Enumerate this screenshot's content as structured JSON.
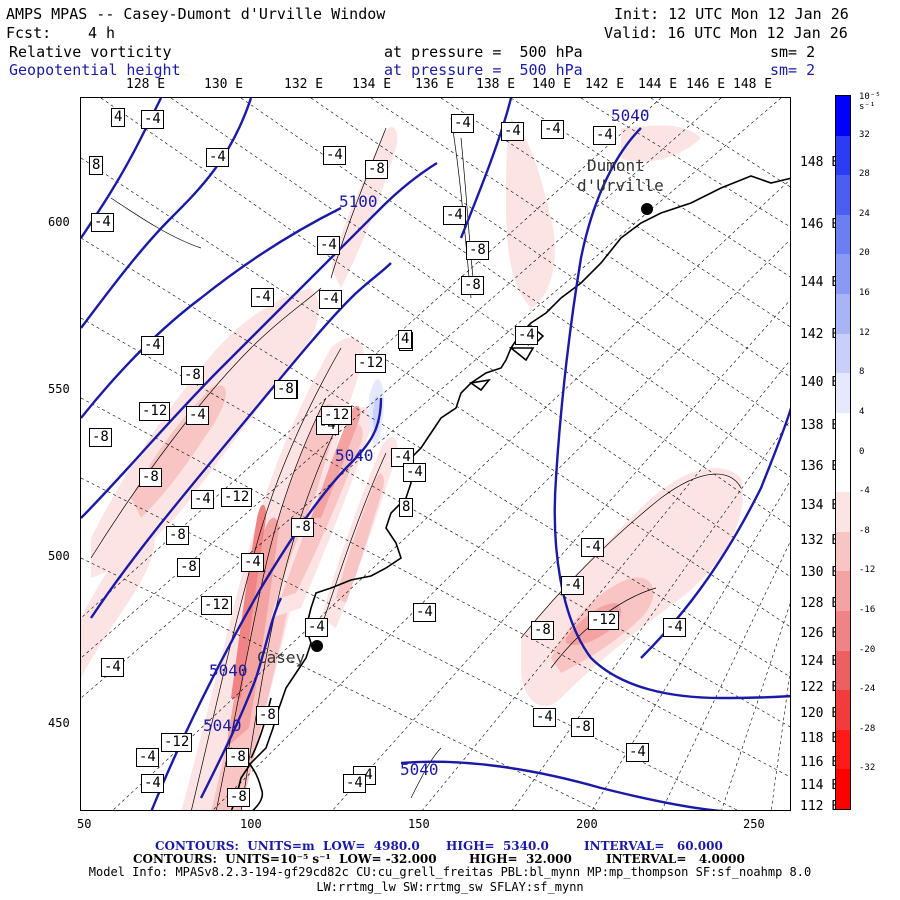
{
  "header": {
    "title": "AMPS MPAS -- Casey-Dumont d'Urville Window",
    "fcst_label": "Fcst:",
    "fcst_value": "4 h",
    "init": "Init: 12 UTC Mon 12 Jan 26",
    "valid": "Valid: 16 UTC Mon 12 Jan 26",
    "field1": "Relative vorticity",
    "field1_level": "at pressure =  500 hPa",
    "field1_sm": "sm= 2",
    "field2": "Geopotential height",
    "field2_level": "at pressure =  500 hPa",
    "field2_sm": "sm= 2"
  },
  "axes": {
    "x_ticks": [
      "50",
      "100",
      "150",
      "200",
      "250"
    ],
    "y_ticks": [
      "600",
      "550",
      "500",
      "450"
    ],
    "lon_labels": [
      "128 E",
      "130 E",
      "132 E",
      "134 E",
      "136 E",
      "138 E",
      "140 E",
      "142 E",
      "144 E",
      "146 E",
      "148 E"
    ],
    "lat_labels_right": [
      "148 E",
      "146 E",
      "144 E",
      "142 E",
      "140 E",
      "138 E",
      "136 E",
      "134 E",
      "132 E",
      "130 E",
      "128 E",
      "126 E",
      "124 E",
      "122 E",
      "120 E",
      "118 E",
      "116 E",
      "114 E",
      "112 E"
    ]
  },
  "colorbar": {
    "unit": "10⁻⁵ s⁻¹",
    "labels": [
      "32",
      "28",
      "24",
      "20",
      "16",
      "12",
      "8",
      "4",
      "0",
      "-4",
      "-8",
      "-12",
      "-16",
      "-20",
      "-24",
      "-28",
      "-32"
    ],
    "colors": [
      "#0000ff",
      "#2b3cf4",
      "#4a5ef0",
      "#6a7ff2",
      "#8a99f4",
      "#a9b4f7",
      "#c8cffa",
      "#e6e9fd",
      "#ffffff",
      "#ffffff",
      "#fde4e4",
      "#f9c4c4",
      "#f4a3a3",
      "#f08383",
      "#ec6060",
      "#f23b3b",
      "#ff1a1a",
      "#ff0000"
    ]
  },
  "map": {
    "places": [
      {
        "name": "Casey"
      },
      {
        "name": "Dumont"
      },
      {
        "name": "d'Urville"
      }
    ],
    "height_labels": [
      "5040",
      "5100",
      "5040",
      "5040",
      "5040",
      "5040"
    ],
    "vort_labels": [
      "4",
      "-4",
      "8",
      "-4",
      "-4",
      "-8",
      "-4",
      "-4",
      "-4",
      "-4",
      "-4",
      "-4",
      "-8",
      "-4",
      "-4",
      "-4",
      "-8",
      "8",
      "-4",
      "-4",
      "-8",
      "-12",
      "-4",
      "-8",
      "-8",
      "-4",
      "-12",
      "-4",
      "-8",
      "-12",
      "-4",
      "-4",
      "-12",
      "-8",
      "-8",
      "-4",
      "-8",
      "-12",
      "-4",
      "-4",
      "-12",
      "-8",
      "-4",
      "-4",
      "-8",
      "-4",
      "-4",
      "-12",
      "-8",
      "-4",
      "-8",
      "-4",
      "-4",
      "-8",
      "-4",
      "-4",
      "4",
      "8",
      "-4",
      "-4"
    ]
  },
  "footer": {
    "line1_a": "CONTOURS:  UNITS=m  LOW=  4980.0",
    "line1_b": "HIGH=  5340.0",
    "line1_c": "INTERVAL=   60.000",
    "line2_a": "CONTOURS:  UNITS=10⁻⁵ s⁻¹  LOW= -32.000",
    "line2_b": "HIGH=  32.000",
    "line2_c": "INTERVAL=   4.0000",
    "model_info": "Model Info: MPASv8.2.3-194-gf29cd82c CU:cu_grell_freitas PBL:bl_mynn MP:mp_thompson SF:sf_noahmp 8.0",
    "model_info2": "LW:rrtmg_lw SW:rrtmg_sw SFLAY:sf_mynn"
  }
}
